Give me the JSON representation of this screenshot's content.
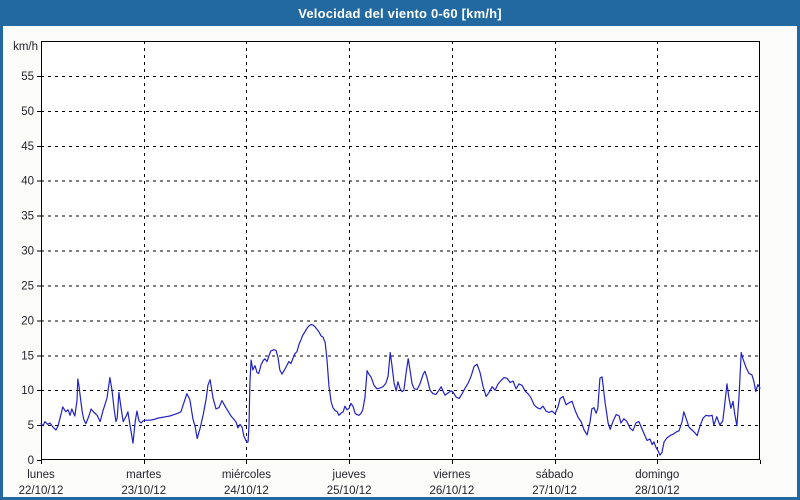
{
  "window": {
    "title": "Velocidad del viento 0-60 [km/h]"
  },
  "colors": {
    "titlebar": "#2269a1",
    "frame": "#2269a1",
    "background": "#fcfdfb",
    "plot_background": "#ffffff",
    "grid": "#000000",
    "axis_text": "#23232b",
    "title_text": "#ffffff",
    "line": "#2222c4"
  },
  "chart_data": {
    "type": "line",
    "title": "Velocidad del viento 0-60 [km/h]",
    "grid": "dashed",
    "legend": "none",
    "y_axis": {
      "unit_label": "km/h",
      "min": 0,
      "max": 60,
      "tick_step": 5,
      "tick_labels": [
        "0",
        "5",
        "10",
        "15",
        "20",
        "25",
        "30",
        "35",
        "40",
        "45",
        "50",
        "55"
      ]
    },
    "x_axis": {
      "days": [
        {
          "name": "lunes",
          "date": "22/10/12"
        },
        {
          "name": "martes",
          "date": "23/10/12"
        },
        {
          "name": "miércoles",
          "date": "24/10/12"
        },
        {
          "name": "jueves",
          "date": "25/10/12"
        },
        {
          "name": "viernes",
          "date": "26/10/12"
        },
        {
          "name": "sábado",
          "date": "27/10/12"
        },
        {
          "name": "domingo",
          "date": "28/10/12"
        }
      ],
      "hours_total": 168
    },
    "series": [
      {
        "name": "Velocidad del viento",
        "color": "#2222c4",
        "points": [
          [
            0,
            5.2
          ],
          [
            0.5,
            4.9
          ],
          [
            0.9,
            5.5
          ],
          [
            1.6,
            5.1
          ],
          [
            2.1,
            5.3
          ],
          [
            2.8,
            4.7
          ],
          [
            3.5,
            4.3
          ],
          [
            4,
            4.9
          ],
          [
            4.7,
            6.6
          ],
          [
            5.1,
            7.6
          ],
          [
            5.8,
            6.9
          ],
          [
            6.3,
            7.2
          ],
          [
            6.8,
            6.4
          ],
          [
            7.2,
            7.3
          ],
          [
            7.9,
            6.3
          ],
          [
            8.4,
            8.5
          ],
          [
            8.6,
            11.6
          ],
          [
            8.9,
            10.5
          ],
          [
            9.1,
            9.5
          ],
          [
            9.6,
            7
          ],
          [
            10,
            5.8
          ],
          [
            10.5,
            5.2
          ],
          [
            11.2,
            6.3
          ],
          [
            11.7,
            7.3
          ],
          [
            12.4,
            6.8
          ],
          [
            13.1,
            6.4
          ],
          [
            13.8,
            5.5
          ],
          [
            14.5,
            7.1
          ],
          [
            15.4,
            8.8
          ],
          [
            16.1,
            11.8
          ],
          [
            16.6,
            10
          ],
          [
            17.1,
            7.2
          ],
          [
            17.5,
            5.5
          ],
          [
            17.8,
            6
          ],
          [
            18.2,
            9.7
          ],
          [
            18.7,
            7.5
          ],
          [
            19.2,
            5.5
          ],
          [
            19.9,
            6.3
          ],
          [
            20.3,
            6.9
          ],
          [
            20.8,
            5
          ],
          [
            21.5,
            2.4
          ],
          [
            22,
            5.5
          ],
          [
            22.4,
            7
          ],
          [
            22.9,
            5.6
          ],
          [
            23.4,
            5.3
          ],
          [
            23.8,
            5.6
          ],
          [
            24.5,
            5.7
          ],
          [
            25.5,
            5.7
          ],
          [
            26.4,
            5.8
          ],
          [
            27.3,
            6
          ],
          [
            28.3,
            6.1
          ],
          [
            29.2,
            6.2
          ],
          [
            30.1,
            6.3
          ],
          [
            31.1,
            6.5
          ],
          [
            32,
            6.7
          ],
          [
            32.7,
            6.9
          ],
          [
            33.4,
            8.2
          ],
          [
            34.1,
            9.5
          ],
          [
            34.8,
            8.6
          ],
          [
            35.5,
            5.9
          ],
          [
            36,
            4.8
          ],
          [
            36.5,
            3.1
          ],
          [
            37.2,
            4.6
          ],
          [
            37.9,
            6.5
          ],
          [
            38.6,
            8.8
          ],
          [
            39,
            10.7
          ],
          [
            39.5,
            11.5
          ],
          [
            40.2,
            8.9
          ],
          [
            40.9,
            7.3
          ],
          [
            41.6,
            7.5
          ],
          [
            42.3,
            8.5
          ],
          [
            43,
            7.7
          ],
          [
            43.7,
            7
          ],
          [
            44.4,
            6.3
          ],
          [
            45.1,
            5.8
          ],
          [
            45.6,
            5.4
          ],
          [
            46,
            4.6
          ],
          [
            46.5,
            5.1
          ],
          [
            47,
            4.7
          ],
          [
            47.4,
            3.4
          ],
          [
            48.1,
            2.5
          ],
          [
            48.4,
            2.6
          ],
          [
            48.6,
            5
          ],
          [
            48.8,
            11
          ],
          [
            49.1,
            14.3
          ],
          [
            49.5,
            12.9
          ],
          [
            50,
            13.5
          ],
          [
            50.5,
            12.5
          ],
          [
            50.9,
            12.4
          ],
          [
            51.4,
            13.6
          ],
          [
            51.9,
            14.2
          ],
          [
            52.3,
            14.5
          ],
          [
            52.8,
            14.1
          ],
          [
            53.3,
            15
          ],
          [
            53.7,
            15.6
          ],
          [
            54.4,
            15.8
          ],
          [
            54.9,
            15.7
          ],
          [
            55.4,
            14.6
          ],
          [
            55.8,
            12.9
          ],
          [
            56.3,
            12.3
          ],
          [
            57,
            13
          ],
          [
            57.5,
            13.6
          ],
          [
            57.9,
            14.1
          ],
          [
            58.4,
            13.8
          ],
          [
            58.9,
            14.6
          ],
          [
            59.4,
            15.3
          ],
          [
            59.8,
            15.5
          ],
          [
            60.3,
            16.6
          ],
          [
            60.8,
            17.3
          ],
          [
            61.2,
            17.9
          ],
          [
            61.7,
            18.4
          ],
          [
            62.2,
            18.9
          ],
          [
            62.6,
            19.2
          ],
          [
            63.1,
            19.4
          ],
          [
            63.6,
            19.3
          ],
          [
            64,
            19.1
          ],
          [
            64.5,
            18.7
          ],
          [
            65,
            18.3
          ],
          [
            65.4,
            17.8
          ],
          [
            65.9,
            17.6
          ],
          [
            66.4,
            16.8
          ],
          [
            66.8,
            14.5
          ],
          [
            67.3,
            10.5
          ],
          [
            67.8,
            8.3
          ],
          [
            68.2,
            7.5
          ],
          [
            68.7,
            7.1
          ],
          [
            69.2,
            6.9
          ],
          [
            69.6,
            6.4
          ],
          [
            70.1,
            6.7
          ],
          [
            70.6,
            6.9
          ],
          [
            71,
            7.7
          ],
          [
            71.5,
            7.2
          ],
          [
            72,
            7.4
          ],
          [
            72.4,
            8.1
          ],
          [
            72.9,
            7.7
          ],
          [
            73.4,
            6.7
          ],
          [
            73.8,
            6.5
          ],
          [
            74.3,
            6.4
          ],
          [
            74.8,
            6.7
          ],
          [
            75.2,
            7.2
          ],
          [
            75.7,
            9
          ],
          [
            76.2,
            12.8
          ],
          [
            76.6,
            12.3
          ],
          [
            77.1,
            11.9
          ],
          [
            77.8,
            10.7
          ],
          [
            78.5,
            10.2
          ],
          [
            79.2,
            10.3
          ],
          [
            79.9,
            10.5
          ],
          [
            80.6,
            11
          ],
          [
            81.1,
            12
          ],
          [
            81.6,
            15.4
          ],
          [
            82,
            13.6
          ],
          [
            82.5,
            11
          ],
          [
            83,
            9.9
          ],
          [
            83.4,
            11.2
          ],
          [
            83.9,
            10.2
          ],
          [
            84.4,
            9.8
          ],
          [
            84.8,
            10
          ],
          [
            85.3,
            12.5
          ],
          [
            85.8,
            14.5
          ],
          [
            86.2,
            13
          ],
          [
            86.7,
            10.9
          ],
          [
            87.2,
            10.2
          ],
          [
            87.9,
            10.1
          ],
          [
            88.6,
            11
          ],
          [
            89.3,
            12.3
          ],
          [
            89.7,
            12.7
          ],
          [
            90.2,
            11.8
          ],
          [
            90.9,
            10
          ],
          [
            91.6,
            9.5
          ],
          [
            92.3,
            9.4
          ],
          [
            93,
            10
          ],
          [
            93.5,
            10.5
          ],
          [
            93.9,
            9.9
          ],
          [
            94.4,
            9.3
          ],
          [
            95.1,
            9.6
          ],
          [
            95.8,
            9.9
          ],
          [
            96.3,
            9.7
          ],
          [
            97,
            9
          ],
          [
            97.7,
            8.8
          ],
          [
            98.4,
            9.5
          ],
          [
            99.1,
            10.3
          ],
          [
            99.8,
            11
          ],
          [
            100.5,
            12
          ],
          [
            101.2,
            13.4
          ],
          [
            101.9,
            13.7
          ],
          [
            102.6,
            12.5
          ],
          [
            103.3,
            10.5
          ],
          [
            104,
            9.1
          ],
          [
            104.7,
            9.7
          ],
          [
            105.4,
            10.5
          ],
          [
            106.1,
            10
          ],
          [
            106.8,
            10.9
          ],
          [
            107.5,
            11.4
          ],
          [
            108.2,
            11.8
          ],
          [
            108.9,
            11.7
          ],
          [
            109.6,
            11.1
          ],
          [
            110.3,
            11.3
          ],
          [
            111,
            10.2
          ],
          [
            111.7,
            10.9
          ],
          [
            112.4,
            10.7
          ],
          [
            113.1,
            9.9
          ],
          [
            113.8,
            9.5
          ],
          [
            114.5,
            8.9
          ],
          [
            115.2,
            7.9
          ],
          [
            115.9,
            7.5
          ],
          [
            116.6,
            7.3
          ],
          [
            117.3,
            7.7
          ],
          [
            118,
            7
          ],
          [
            118.7,
            6.8
          ],
          [
            119.4,
            7
          ],
          [
            120.1,
            6.6
          ],
          [
            120.8,
            7.6
          ],
          [
            121.3,
            8.8
          ],
          [
            122,
            9.1
          ],
          [
            122.7,
            7.9
          ],
          [
            123.4,
            8.2
          ],
          [
            124.1,
            8.4
          ],
          [
            124.8,
            7.1
          ],
          [
            125.5,
            6.1
          ],
          [
            126.2,
            5.5
          ],
          [
            126.9,
            4.3
          ],
          [
            127.6,
            3.6
          ],
          [
            128.3,
            5.5
          ],
          [
            128.7,
            7.3
          ],
          [
            129.2,
            7.5
          ],
          [
            129.7,
            6.7
          ],
          [
            130.1,
            7.4
          ],
          [
            130.6,
            11.7
          ],
          [
            131.1,
            11.9
          ],
          [
            131.8,
            8.2
          ],
          [
            132.5,
            5.3
          ],
          [
            133,
            4.4
          ],
          [
            133.7,
            5.6
          ],
          [
            134.4,
            6.5
          ],
          [
            135.1,
            6.3
          ],
          [
            135.5,
            5.3
          ],
          [
            136.2,
            5.9
          ],
          [
            136.9,
            5.5
          ],
          [
            137.6,
            4.6
          ],
          [
            138.3,
            4.2
          ],
          [
            139,
            5.3
          ],
          [
            139.7,
            5.5
          ],
          [
            140.4,
            4.5
          ],
          [
            141.1,
            3.5
          ],
          [
            141.6,
            2.8
          ],
          [
            142.3,
            3
          ],
          [
            142.8,
            2.2
          ],
          [
            143.2,
            2.6
          ],
          [
            143.7,
            1.8
          ],
          [
            144.2,
            1.3
          ],
          [
            144.6,
            0.7
          ],
          [
            145.1,
            1.1
          ],
          [
            145.6,
            2.6
          ],
          [
            146.3,
            3.2
          ],
          [
            147,
            3.5
          ],
          [
            147.7,
            3.7
          ],
          [
            148.4,
            4
          ],
          [
            149.1,
            4.2
          ],
          [
            149.8,
            5.5
          ],
          [
            150.2,
            6.9
          ],
          [
            150.7,
            6
          ],
          [
            151.4,
            4.7
          ],
          [
            152.1,
            4.3
          ],
          [
            152.8,
            3.9
          ],
          [
            153.3,
            3.5
          ],
          [
            154,
            4.9
          ],
          [
            154.7,
            6
          ],
          [
            155.4,
            6.4
          ],
          [
            156.1,
            6.3
          ],
          [
            156.8,
            6.4
          ],
          [
            157.2,
            5
          ],
          [
            157.9,
            6.2
          ],
          [
            158.6,
            5
          ],
          [
            159.3,
            5.6
          ],
          [
            159.8,
            8.2
          ],
          [
            160.3,
            10.9
          ],
          [
            160.7,
            9
          ],
          [
            161.2,
            7.4
          ],
          [
            161.7,
            8.4
          ],
          [
            162.1,
            6.6
          ],
          [
            162.6,
            4.9
          ],
          [
            163.1,
            9
          ],
          [
            163.6,
            15.4
          ],
          [
            164,
            14.5
          ],
          [
            164.7,
            13.3
          ],
          [
            165.4,
            12.4
          ],
          [
            166.1,
            12.2
          ],
          [
            166.6,
            11.2
          ],
          [
            167,
            9.8
          ],
          [
            167.5,
            10.8
          ],
          [
            168,
            10.3
          ]
        ]
      }
    ]
  }
}
